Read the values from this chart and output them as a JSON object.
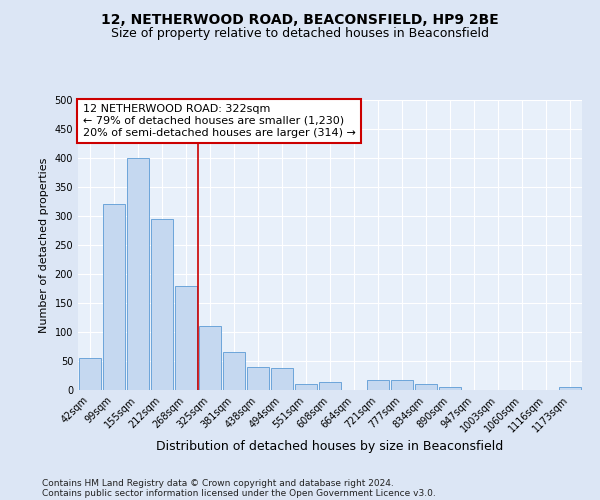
{
  "title": "12, NETHERWOOD ROAD, BEACONSFIELD, HP9 2BE",
  "subtitle": "Size of property relative to detached houses in Beaconsfield",
  "xlabel": "Distribution of detached houses by size in Beaconsfield",
  "ylabel": "Number of detached properties",
  "categories": [
    "42sqm",
    "99sqm",
    "155sqm",
    "212sqm",
    "268sqm",
    "325sqm",
    "381sqm",
    "438sqm",
    "494sqm",
    "551sqm",
    "608sqm",
    "664sqm",
    "721sqm",
    "777sqm",
    "834sqm",
    "890sqm",
    "947sqm",
    "1003sqm",
    "1060sqm",
    "1116sqm",
    "1173sqm"
  ],
  "values": [
    55,
    320,
    400,
    295,
    180,
    110,
    65,
    40,
    38,
    10,
    13,
    0,
    18,
    18,
    10,
    5,
    0,
    0,
    0,
    0,
    5
  ],
  "bar_color": "#c5d8f0",
  "bar_edge_color": "#5b9bd5",
  "vline_x_index": 5,
  "vline_color": "#cc0000",
  "annotation_line1": "12 NETHERWOOD ROAD: 322sqm",
  "annotation_line2": "← 79% of detached houses are smaller (1,230)",
  "annotation_line3": "20% of semi-detached houses are larger (314) →",
  "annotation_box_edgecolor": "#cc0000",
  "ylim": [
    0,
    500
  ],
  "yticks": [
    0,
    50,
    100,
    150,
    200,
    250,
    300,
    350,
    400,
    450,
    500
  ],
  "footer_line1": "Contains HM Land Registry data © Crown copyright and database right 2024.",
  "footer_line2": "Contains public sector information licensed under the Open Government Licence v3.0.",
  "background_color": "#dce6f5",
  "plot_bg_color": "#e8f0fa",
  "grid_color": "#ffffff",
  "title_fontsize": 10,
  "subtitle_fontsize": 9,
  "xlabel_fontsize": 9,
  "ylabel_fontsize": 8,
  "tick_fontsize": 7,
  "annotation_fontsize": 8,
  "footer_fontsize": 6.5
}
